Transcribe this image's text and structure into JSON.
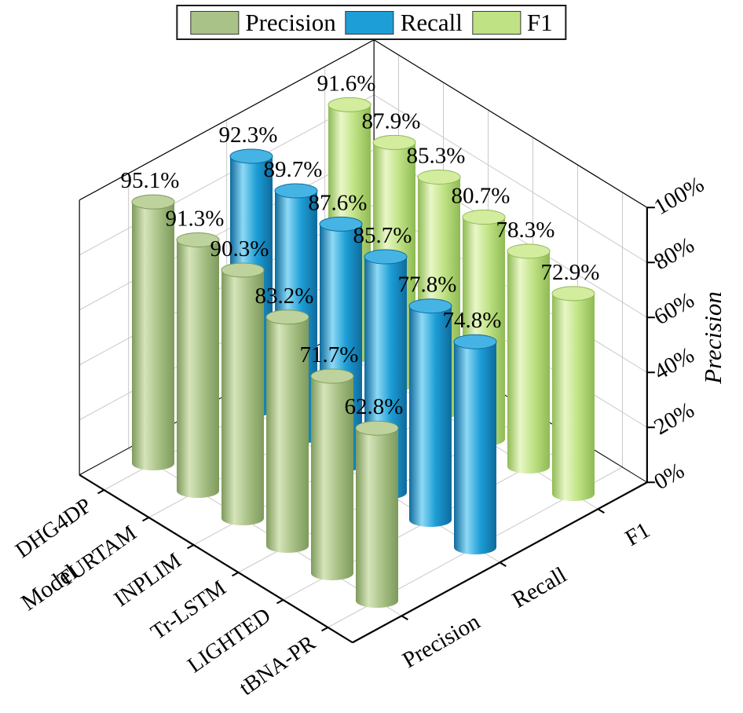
{
  "chart_data": {
    "type": "bar",
    "style": "3d-cylinder",
    "categories": [
      "DHG4DP",
      "TURTAM",
      "INPLIM",
      "Tr-LSTM",
      "LIGHTED",
      "tBNA-PR"
    ],
    "series": [
      {
        "name": "Precision",
        "color": "#a9c287",
        "shade_dark": "#7d9a5c",
        "shade_light": "#d6e4ba",
        "top": "#bdd29c",
        "values": [
          95.1,
          91.3,
          90.3,
          83.2,
          71.7,
          62.8
        ]
      },
      {
        "name": "Recall",
        "color": "#1d9ed6",
        "shade_dark": "#0e6a9c",
        "shade_light": "#8ed9f5",
        "top": "#45b4e4",
        "values": [
          92.3,
          89.7,
          87.6,
          85.7,
          77.8,
          74.8
        ]
      },
      {
        "name": "F1",
        "color": "#bfe284",
        "shade_dark": "#8fba54",
        "shade_light": "#e9f7c8",
        "top": "#d3ec9e",
        "values": [
          91.6,
          87.9,
          85.3,
          80.7,
          78.3,
          72.9
        ]
      }
    ],
    "x_axis_label": "Model",
    "z_axis_label": "Precision",
    "z_ticks": [
      "0%",
      "20%",
      "40%",
      "60%",
      "80%",
      "100%"
    ],
    "zlim": [
      0,
      100
    ],
    "z_tick_step": 20,
    "value_suffix": "%",
    "legend_position": "top",
    "grid": true
  }
}
